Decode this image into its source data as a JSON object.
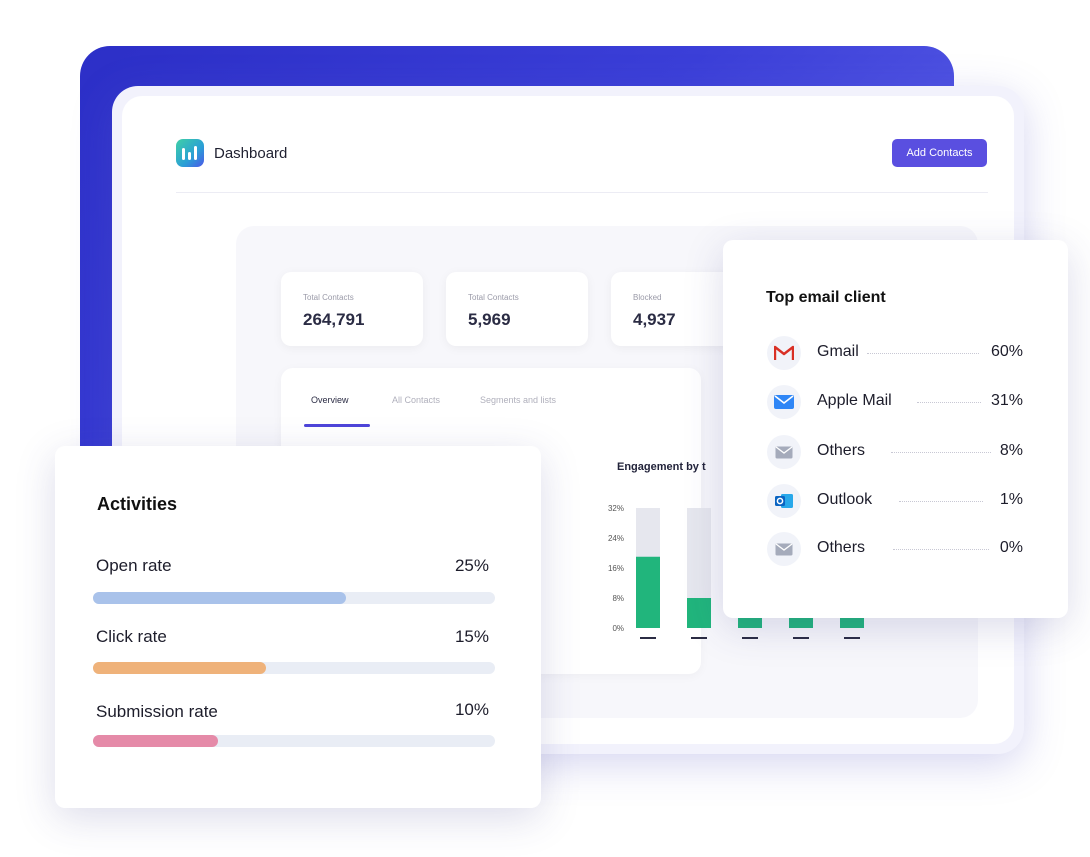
{
  "header": {
    "app_title": "Dashboard",
    "add_contacts_label": "Add Contacts"
  },
  "stats": [
    {
      "label": "Total Contacts",
      "value": "264,791"
    },
    {
      "label": "Total Contacts",
      "value": "5,969"
    },
    {
      "label": "Blocked",
      "value": "4,937"
    }
  ],
  "tabs": [
    {
      "label": "Overview",
      "active": true
    },
    {
      "label": "All Contacts",
      "active": false
    },
    {
      "label": "Segments and lists",
      "active": false
    }
  ],
  "chart_data": {
    "type": "bar",
    "title": "Engagement by t",
    "yticks": [
      "32%",
      "24%",
      "16%",
      "8%",
      "0%"
    ],
    "ylim": [
      0,
      32
    ],
    "categories": [
      "",
      "",
      "",
      "",
      ""
    ],
    "series": [
      {
        "values": [
          19,
          8,
          4,
          4,
          4
        ]
      }
    ],
    "background_max": 32,
    "colors": {
      "bar": "#21b57c",
      "track": "#e6e7ee"
    }
  },
  "activities": {
    "title": "Activities",
    "rows": [
      {
        "label": "Open rate",
        "pct": "25%",
        "fill": 0.63,
        "color": "#a9c2ea"
      },
      {
        "label": "Click rate",
        "pct": "15%",
        "fill": 0.43,
        "color": "#efb27a"
      },
      {
        "label": "Submission rate",
        "pct": "10%",
        "fill": 0.31,
        "color": "#e58aa8"
      }
    ]
  },
  "email_clients": {
    "title": "Top email client",
    "rows": [
      {
        "name": "Gmail",
        "pct": "60%",
        "icon": "gmail-icon"
      },
      {
        "name": "Apple Mail",
        "pct": "31%",
        "icon": "apple-mail-icon"
      },
      {
        "name": "Others",
        "pct": "8%",
        "icon": "envelope-icon"
      },
      {
        "name": "Outlook",
        "pct": "1%",
        "icon": "outlook-icon"
      },
      {
        "name": "Others",
        "pct": "0%",
        "icon": "envelope-icon"
      }
    ]
  },
  "colors": {
    "accent": "#5a4fe0",
    "backdrop": "#2c2fc7",
    "tab_active": "#4e45d9"
  }
}
